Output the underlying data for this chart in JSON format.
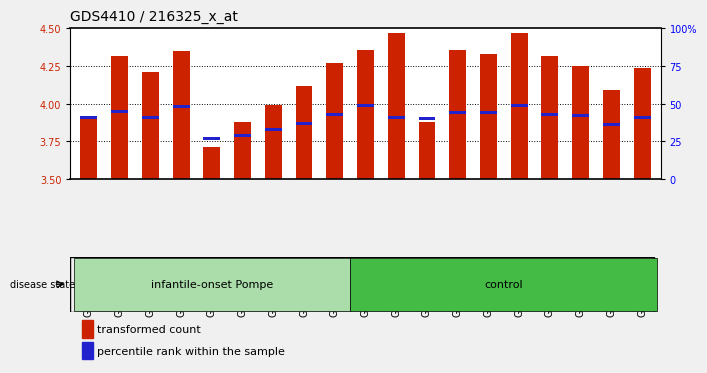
{
  "title": "GDS4410 / 216325_x_at",
  "samples": [
    "GSM947471",
    "GSM947472",
    "GSM947473",
    "GSM947474",
    "GSM947475",
    "GSM947476",
    "GSM947477",
    "GSM947478",
    "GSM947479",
    "GSM947461",
    "GSM947462",
    "GSM947463",
    "GSM947464",
    "GSM947465",
    "GSM947466",
    "GSM947467",
    "GSM947468",
    "GSM947469",
    "GSM947470"
  ],
  "transformed_count": [
    3.9,
    4.32,
    4.21,
    4.35,
    3.71,
    3.88,
    3.99,
    4.12,
    4.27,
    4.36,
    4.47,
    3.88,
    4.36,
    4.33,
    4.47,
    4.32,
    4.25,
    4.09,
    4.24
  ],
  "percentile_rank": [
    3.91,
    3.95,
    3.91,
    3.98,
    3.77,
    3.79,
    3.83,
    3.87,
    3.93,
    3.99,
    3.91,
    3.9,
    3.94,
    3.94,
    3.99,
    3.93,
    3.92,
    3.86,
    3.91
  ],
  "groups": {
    "infantile-onset Pompe": [
      0,
      1,
      2,
      3,
      4,
      5,
      6,
      7,
      8
    ],
    "control": [
      9,
      10,
      11,
      12,
      13,
      14,
      15,
      16,
      17,
      18
    ]
  },
  "group_colors": {
    "infantile-onset Pompe": "#aaddaa",
    "control": "#44bb44"
  },
  "ymin": 3.5,
  "ymax": 4.5,
  "bar_color": "#cc2200",
  "blue_color": "#2222cc",
  "bar_width": 0.55,
  "yticks": [
    3.5,
    3.75,
    4.0,
    4.25,
    4.5
  ],
  "right_yticks": [
    0,
    25,
    50,
    75,
    100
  ],
  "right_yticklabels": [
    "0",
    "25",
    "50",
    "75",
    "100%"
  ],
  "background_color": "#f0f0f0",
  "plot_bg_color": "#ffffff",
  "tick_bg_color": "#cccccc",
  "title_fontsize": 10,
  "label_fontsize": 7.5,
  "tick_fontsize": 7
}
